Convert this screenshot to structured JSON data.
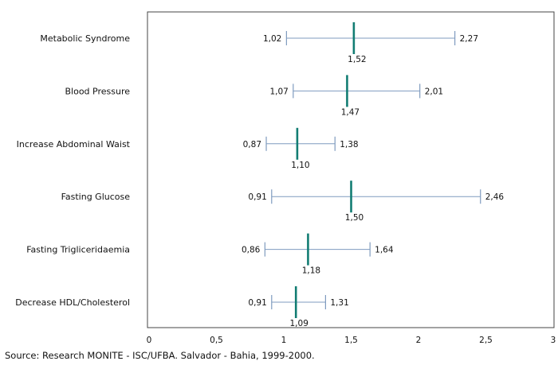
{
  "chart_data": {
    "type": "forest",
    "categories": [
      "Metabolic Syndrome",
      "Blood Pressure",
      "Increase Abdominal Waist",
      "Fasting Glucose",
      "Fasting Trigliceridaemia",
      "Decrease HDL/Cholesterol"
    ],
    "series": [
      {
        "points": [
          {
            "lower": 1.02,
            "estimate": 1.52,
            "upper": 2.27,
            "lower_label": "1,02",
            "estimate_label": "1,52",
            "upper_label": "2,27"
          },
          {
            "lower": 1.07,
            "estimate": 1.47,
            "upper": 2.01,
            "lower_label": "1,07",
            "estimate_label": "1,47",
            "upper_label": "2,01"
          },
          {
            "lower": 0.87,
            "estimate": 1.1,
            "upper": 1.38,
            "lower_label": "0,87",
            "estimate_label": "1,10",
            "upper_label": "1,38"
          },
          {
            "lower": 0.91,
            "estimate": 1.5,
            "upper": 2.46,
            "lower_label": "0,91",
            "estimate_label": "1,50",
            "upper_label": "2,46"
          },
          {
            "lower": 0.86,
            "estimate": 1.18,
            "upper": 1.64,
            "lower_label": "0,86",
            "estimate_label": "1,18",
            "upper_label": "1,64"
          },
          {
            "lower": 0.91,
            "estimate": 1.09,
            "upper": 1.31,
            "lower_label": "0,91",
            "estimate_label": "1,09",
            "upper_label": "1,31"
          }
        ]
      }
    ],
    "xlim": [
      0,
      3
    ],
    "xticks": [
      0,
      0.5,
      1,
      1.5,
      2,
      2.5,
      3
    ],
    "xtick_labels": [
      "0",
      "0,5",
      "1",
      "1,5",
      "2",
      "2,5",
      "3"
    ],
    "grid": false,
    "colors": {
      "interval": "#7f9bbf",
      "estimate": "#127d73",
      "frame": "#444444"
    }
  },
  "source": "Source: Research MONITE - ISC/UFBA. Salvador - Bahia, 1999-2000."
}
